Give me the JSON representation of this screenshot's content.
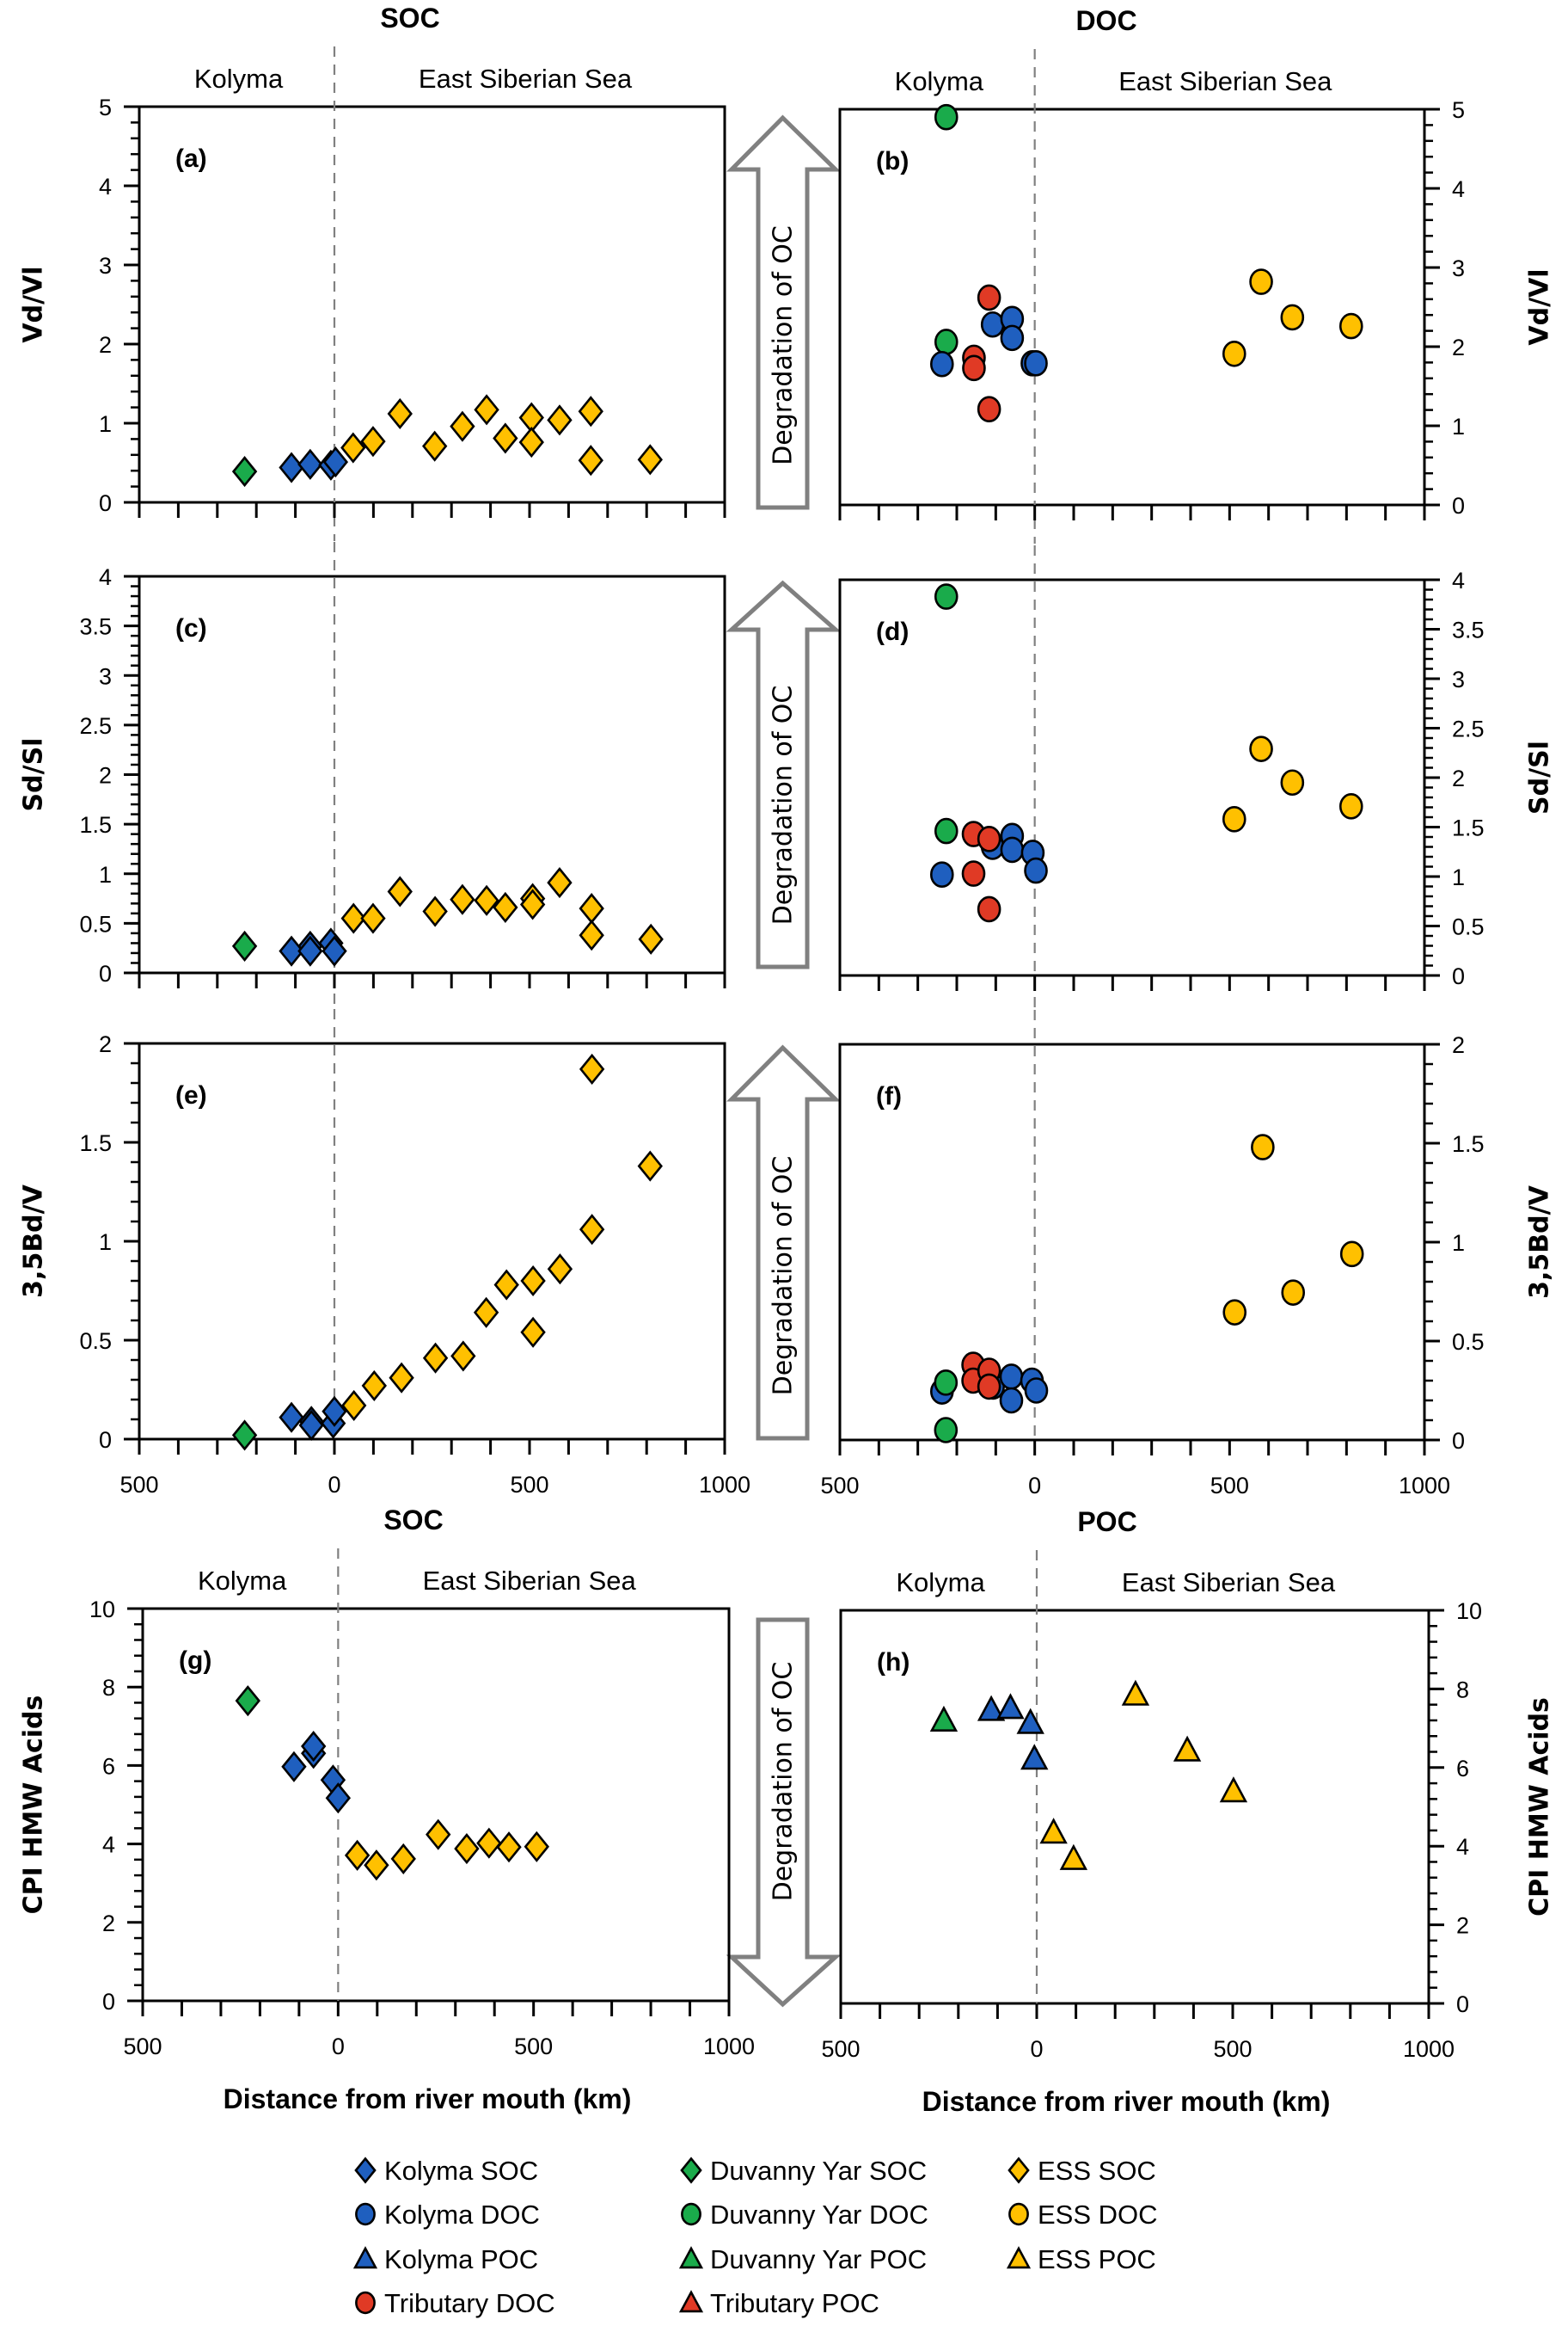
{
  "figure": {
    "degradation_arrow_label": "Degradation of OC",
    "region_left": "Kolyma",
    "region_right": "East Siberian Sea",
    "xaxis_title": "Distance from river mouth (km)"
  },
  "series_styles": {
    "kolyma_soc": {
      "label": "Kolyma SOC",
      "shape": "diamond",
      "color": "#1f5fbf"
    },
    "kolyma_doc": {
      "label": "Kolyma DOC",
      "shape": "circle",
      "color": "#1f5fbf"
    },
    "kolyma_poc": {
      "label": "Kolyma POC",
      "shape": "triangle",
      "color": "#1f5fbf"
    },
    "tributary_doc": {
      "label": "Tributary DOC",
      "shape": "circle",
      "color": "#e03a25"
    },
    "duvanny_soc": {
      "label": "Duvanny Yar SOC",
      "shape": "diamond",
      "color": "#1aab4b"
    },
    "duvanny_doc": {
      "label": "Duvanny Yar DOC",
      "shape": "circle",
      "color": "#1aab4b"
    },
    "duvanny_poc": {
      "label": "Duvanny Yar POC",
      "shape": "triangle",
      "color": "#1aab4b"
    },
    "tributary_poc": {
      "label": "Tributary POC",
      "shape": "triangle",
      "color": "#e03a25"
    },
    "ess_soc": {
      "label": "ESS SOC",
      "shape": "diamond",
      "color": "#ffc000"
    },
    "ess_doc": {
      "label": "ESS DOC",
      "shape": "circle",
      "color": "#ffc000"
    },
    "ess_poc": {
      "label": "ESS POC",
      "shape": "triangle",
      "color": "#ffc000"
    }
  },
  "legend": {
    "columns": [
      [
        "kolyma_soc",
        "kolyma_doc",
        "kolyma_poc",
        "tributary_doc"
      ],
      [
        "duvanny_soc",
        "duvanny_doc",
        "duvanny_poc",
        "tributary_poc"
      ],
      [
        "ess_soc",
        "ess_doc",
        "ess_poc"
      ]
    ]
  },
  "chart_data": [
    {
      "id": "a",
      "type": "scatter",
      "panel_label": "(a)",
      "title": "SOC",
      "region_labels": [
        "Kolyma",
        "East Siberian Sea"
      ],
      "xlabel": "",
      "ylabel": "Vd/Vl",
      "xlim": [
        -500,
        1000
      ],
      "ylim": [
        0,
        5
      ],
      "yticks": [
        0,
        1,
        2,
        3,
        4,
        5
      ],
      "xticks": [
        -500,
        0,
        500,
        1000
      ],
      "xtick_labels": [],
      "y_axis_side": "left",
      "divider_x": 0,
      "series": [
        {
          "key": "duvanny_soc",
          "points": [
            [
              -230,
              0.39
            ]
          ]
        },
        {
          "key": "kolyma_soc",
          "points": [
            [
              -110,
              0.44
            ],
            [
              -62,
              0.48
            ],
            [
              -9,
              0.47
            ],
            [
              3,
              0.51
            ]
          ]
        },
        {
          "key": "ess_soc",
          "points": [
            [
              48,
              0.69
            ],
            [
              99,
              0.77
            ],
            [
              168,
              1.12
            ],
            [
              257,
              0.71
            ],
            [
              328,
              0.96
            ],
            [
              390,
              1.17
            ],
            [
              438,
              0.81
            ],
            [
              505,
              1.07
            ],
            [
              505,
              0.76
            ],
            [
              577,
              1.04
            ],
            [
              657,
              1.15
            ],
            [
              657,
              0.53
            ],
            [
              809,
              0.54
            ]
          ]
        }
      ]
    },
    {
      "id": "b",
      "type": "scatter",
      "panel_label": "(b)",
      "title": "DOC",
      "region_labels": [
        "Kolyma",
        "East Siberian Sea"
      ],
      "xlabel": "",
      "ylabel": "Vd/Vl",
      "xlim": [
        -500,
        1000
      ],
      "ylim": [
        0,
        5
      ],
      "yticks": [
        0,
        1,
        2,
        3,
        4,
        5
      ],
      "xticks": [
        -500,
        0,
        500,
        1000
      ],
      "xtick_labels": [],
      "y_axis_side": "right",
      "divider_x": 0,
      "series": [
        {
          "key": "duvanny_doc",
          "points": [
            [
              -227,
              4.9
            ],
            [
              -227,
              2.06
            ]
          ]
        },
        {
          "key": "kolyma_doc",
          "points": [
            [
              -238,
              1.78
            ],
            [
              -108,
              2.28
            ],
            [
              -58,
              2.35
            ],
            [
              -58,
              2.11
            ],
            [
              -6,
              1.79
            ],
            [
              3,
              1.79
            ]
          ]
        },
        {
          "key": "tributary_doc",
          "points": [
            [
              -156,
              1.86
            ],
            [
              -156,
              1.73
            ],
            [
              -117,
              2.62
            ],
            [
              -117,
              1.21
            ]
          ]
        },
        {
          "key": "ess_doc",
          "points": [
            [
              512,
              1.91
            ],
            [
              581,
              2.82
            ],
            [
              661,
              2.37
            ],
            [
              812,
              2.26
            ]
          ]
        }
      ]
    },
    {
      "id": "c",
      "type": "scatter",
      "panel_label": "(c)",
      "title": "",
      "region_labels": [],
      "xlabel": "",
      "ylabel": "Sd/Sl",
      "xlim": [
        -500,
        1000
      ],
      "ylim": [
        0,
        4
      ],
      "yticks": [
        0,
        0.5,
        1,
        1.5,
        2,
        2.5,
        3,
        3.5,
        4
      ],
      "xticks": [
        -500,
        0,
        500,
        1000
      ],
      "xtick_labels": [],
      "y_axis_side": "left",
      "divider_x": 0,
      "series": [
        {
          "key": "duvanny_soc",
          "points": [
            [
              -230,
              0.27
            ]
          ]
        },
        {
          "key": "kolyma_soc",
          "points": [
            [
              -110,
              0.22
            ],
            [
              -62,
              0.27
            ],
            [
              -62,
              0.22
            ],
            [
              -9,
              0.3
            ],
            [
              0,
              0.22
            ]
          ]
        },
        {
          "key": "ess_soc",
          "points": [
            [
              49,
              0.55
            ],
            [
              99,
              0.55
            ],
            [
              168,
              0.82
            ],
            [
              258,
              0.62
            ],
            [
              328,
              0.74
            ],
            [
              390,
              0.73
            ],
            [
              438,
              0.66
            ],
            [
              508,
              0.75
            ],
            [
              508,
              0.69
            ],
            [
              577,
              0.91
            ],
            [
              659,
              0.65
            ],
            [
              659,
              0.38
            ],
            [
              811,
              0.34
            ]
          ]
        }
      ]
    },
    {
      "id": "d",
      "type": "scatter",
      "panel_label": "(d)",
      "title": "",
      "region_labels": [],
      "xlabel": "",
      "ylabel": "Sd/Sl",
      "xlim": [
        -500,
        1000
      ],
      "ylim": [
        0,
        4
      ],
      "yticks": [
        0,
        0.5,
        1,
        1.5,
        2,
        2.5,
        3,
        3.5,
        4
      ],
      "xticks": [
        -500,
        0,
        500,
        1000
      ],
      "xtick_labels": [],
      "y_axis_side": "right",
      "divider_x": 0,
      "series": [
        {
          "key": "duvanny_doc",
          "points": [
            [
              -227,
              3.83
            ],
            [
              -227,
              1.46
            ]
          ]
        },
        {
          "key": "kolyma_doc",
          "points": [
            [
              -238,
              1.02
            ],
            [
              -108,
              1.3
            ],
            [
              -58,
              1.41
            ],
            [
              -58,
              1.27
            ],
            [
              -5,
              1.24
            ],
            [
              3,
              1.06
            ]
          ]
        },
        {
          "key": "tributary_doc",
          "points": [
            [
              -157,
              1.43
            ],
            [
              -117,
              1.38
            ],
            [
              -157,
              1.03
            ],
            [
              -117,
              0.67
            ]
          ]
        },
        {
          "key": "ess_doc",
          "points": [
            [
              512,
              1.58
            ],
            [
              581,
              2.29
            ],
            [
              661,
              1.95
            ],
            [
              812,
              1.71
            ]
          ]
        }
      ]
    },
    {
      "id": "e",
      "type": "scatter",
      "panel_label": "(e)",
      "title": "",
      "region_labels": [],
      "xlabel": "",
      "ylabel": "3,5Bd/V",
      "xlim": [
        -500,
        1000
      ],
      "ylim": [
        0,
        2
      ],
      "yticks": [
        0,
        0.5,
        1,
        1.5,
        2
      ],
      "xticks": [
        -500,
        0,
        500,
        1000
      ],
      "xtick_labels": [
        "500",
        "0",
        "500",
        "1000"
      ],
      "y_axis_side": "left",
      "divider_x": 0,
      "series": [
        {
          "key": "duvanny_soc",
          "points": [
            [
              -230,
              0.02
            ]
          ]
        },
        {
          "key": "kolyma_soc",
          "points": [
            [
              -110,
              0.11
            ],
            [
              -59,
              0.09
            ],
            [
              -59,
              0.07
            ],
            [
              -3,
              0.08
            ],
            [
              0,
              0.14
            ]
          ]
        },
        {
          "key": "ess_soc",
          "points": [
            [
              50,
              0.17
            ],
            [
              102,
              0.27
            ],
            [
              172,
              0.31
            ],
            [
              259,
              0.41
            ],
            [
              330,
              0.42
            ],
            [
              389,
              0.64
            ],
            [
              441,
              0.78
            ],
            [
              509,
              0.8
            ],
            [
              509,
              0.54
            ],
            [
              578,
              0.86
            ],
            [
              660,
              1.06
            ],
            [
              660,
              1.87
            ],
            [
              809,
              1.38
            ]
          ]
        }
      ]
    },
    {
      "id": "f",
      "type": "scatter",
      "panel_label": "(f)",
      "title": "",
      "region_labels": [],
      "xlabel": "",
      "ylabel": "3,5Bd/V",
      "xlim": [
        -500,
        1000
      ],
      "ylim": [
        0,
        2
      ],
      "yticks": [
        0,
        0.5,
        1,
        1.5,
        2
      ],
      "xticks": [
        -500,
        0,
        500,
        1000
      ],
      "xtick_labels": [
        "500",
        "0",
        "500",
        "1000"
      ],
      "y_axis_side": "right",
      "divider_x": 0,
      "series": [
        {
          "key": "kolyma_doc",
          "points": [
            [
              -238,
              0.245
            ],
            [
              -107,
              0.27
            ],
            [
              -60,
              0.32
            ],
            [
              -60,
              0.2
            ],
            [
              -7,
              0.3
            ],
            [
              4,
              0.25
            ]
          ]
        },
        {
          "key": "duvanny_doc",
          "points": [
            [
              -228,
              0.29
            ],
            [
              -228,
              0.05
            ]
          ]
        },
        {
          "key": "tributary_doc",
          "points": [
            [
              -158,
              0.38
            ],
            [
              -158,
              0.3
            ],
            [
              -117,
              0.35
            ],
            [
              -117,
              0.27
            ]
          ]
        },
        {
          "key": "ess_doc",
          "points": [
            [
              513,
              0.645
            ],
            [
              585,
              1.48
            ],
            [
              663,
              0.745
            ],
            [
              814,
              0.94
            ]
          ]
        }
      ]
    },
    {
      "id": "g",
      "type": "scatter",
      "panel_label": "(g)",
      "title": "SOC",
      "region_labels": [
        "Kolyma",
        "East Siberian Sea"
      ],
      "xlabel": "Distance from river mouth (km)",
      "ylabel": "CPI HMW Acids",
      "xlim": [
        -500,
        1000
      ],
      "ylim": [
        0,
        10
      ],
      "yticks": [
        0,
        2,
        4,
        6,
        8,
        10
      ],
      "xticks": [
        -500,
        0,
        500,
        1000
      ],
      "xtick_labels": [
        "500",
        "0",
        "500",
        "1000"
      ],
      "y_axis_side": "left",
      "divider_x": 0,
      "series": [
        {
          "key": "duvanny_soc",
          "points": [
            [
              -231,
              7.65
            ]
          ]
        },
        {
          "key": "kolyma_soc",
          "points": [
            [
              -113,
              5.97
            ],
            [
              -63,
              6.31
            ],
            [
              -63,
              6.49
            ],
            [
              -13,
              5.63
            ],
            [
              0,
              5.17
            ]
          ]
        },
        {
          "key": "ess_soc",
          "points": [
            [
              49,
              3.71
            ],
            [
              98,
              3.46
            ],
            [
              167,
              3.62
            ],
            [
              256,
              4.24
            ],
            [
              329,
              3.88
            ],
            [
              386,
              4.02
            ],
            [
              437,
              3.92
            ],
            [
              508,
              3.93
            ]
          ]
        }
      ]
    },
    {
      "id": "h",
      "type": "scatter",
      "panel_label": "(h)",
      "title": "POC",
      "region_labels": [
        "Kolyma",
        "East Siberian Sea"
      ],
      "xlabel": "Distance from river mouth (km)",
      "ylabel": "CPI HMW Acids",
      "xlim": [
        -500,
        1000
      ],
      "ylim": [
        0,
        10
      ],
      "yticks": [
        0,
        2,
        4,
        6,
        8,
        10
      ],
      "xticks": [
        -500,
        0,
        500,
        1000
      ],
      "xtick_labels": [
        "500",
        "0",
        "500",
        "1000"
      ],
      "y_axis_side": "right",
      "divider_x": 0,
      "series": [
        {
          "key": "duvanny_poc",
          "points": [
            [
              -237,
              7.2
            ]
          ]
        },
        {
          "key": "kolyma_poc",
          "points": [
            [
              -116,
              7.47
            ],
            [
              -67,
              7.52
            ],
            [
              -16,
              7.14
            ],
            [
              -6,
              6.23
            ]
          ]
        },
        {
          "key": "ess_poc",
          "points": [
            [
              252,
              7.86
            ],
            [
              384,
              6.44
            ],
            [
              502,
              5.4
            ],
            [
              43,
              4.35
            ],
            [
              94,
              3.68
            ]
          ]
        }
      ]
    }
  ]
}
